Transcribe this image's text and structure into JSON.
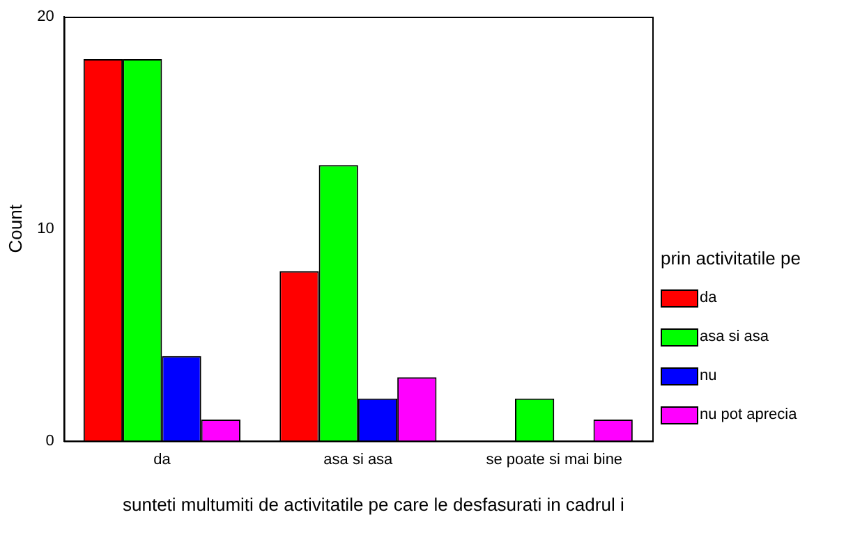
{
  "chart_data": {
    "type": "bar",
    "xlabel": "sunteti multumiti de activitatile pe care le desfasurati in cadrul i",
    "ylabel": "Count",
    "legend_title": "prin activitatile pe",
    "categories": [
      "da",
      "asa si asa",
      "se poate si mai bine"
    ],
    "series": [
      {
        "name": "da",
        "color": "#ff0000",
        "values": [
          18,
          8,
          null
        ]
      },
      {
        "name": "asa si asa",
        "color": "#00ff00",
        "values": [
          18,
          13,
          2
        ]
      },
      {
        "name": "nu",
        "color": "#0000ff",
        "values": [
          4,
          2,
          null
        ]
      },
      {
        "name": "nu pot aprecia",
        "color": "#ff00ff",
        "values": [
          1,
          3,
          1
        ]
      }
    ],
    "ylim": [
      0,
      20
    ],
    "yticks": [
      0,
      10,
      20
    ],
    "grid": false,
    "legend": "right"
  }
}
